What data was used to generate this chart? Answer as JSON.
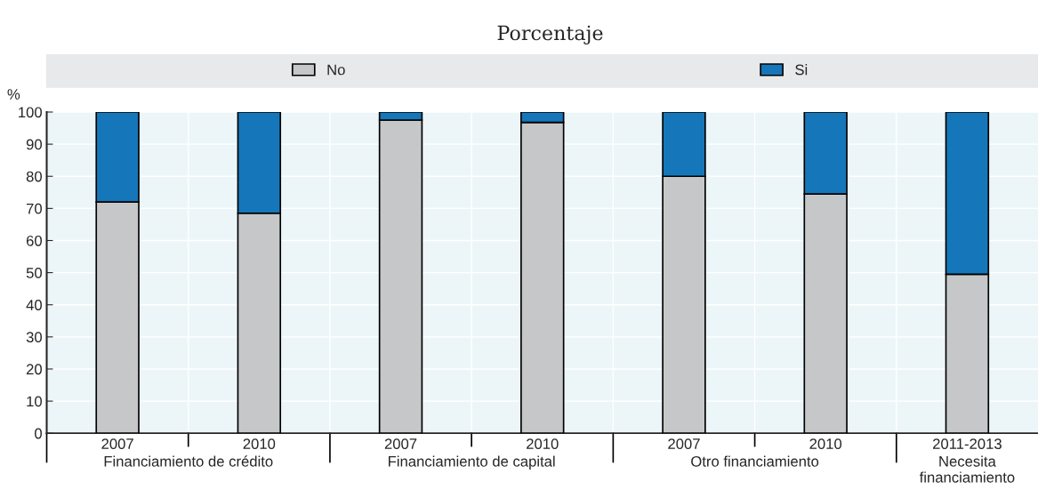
{
  "chart_data": {
    "type": "bar",
    "subtitle": "Porcentaje",
    "ylabel": "%",
    "categories": [
      "2007",
      "2010",
      "2007",
      "2010",
      "2007",
      "2010",
      "2011-2013"
    ],
    "series": [
      {
        "name": "No",
        "color": "#c6c7c9",
        "values": [
          72,
          68.5,
          97.5,
          96.8,
          80,
          74.5,
          49.5
        ]
      },
      {
        "name": "Si",
        "color": "#1577ba",
        "values": [
          28,
          31.5,
          2.5,
          3.2,
          20,
          25.5,
          50.5
        ]
      }
    ],
    "stacked": true,
    "ylim": [
      0,
      100
    ],
    "yticks": [
      0,
      10,
      20,
      30,
      40,
      50,
      60,
      70,
      80,
      90,
      100
    ],
    "grid": true,
    "legend": "top",
    "annotations": [
      "Financiamiento de crédito",
      "Financiamiento de capital",
      "Otro financiamiento",
      "Necesita\nfinanciamiento"
    ]
  }
}
